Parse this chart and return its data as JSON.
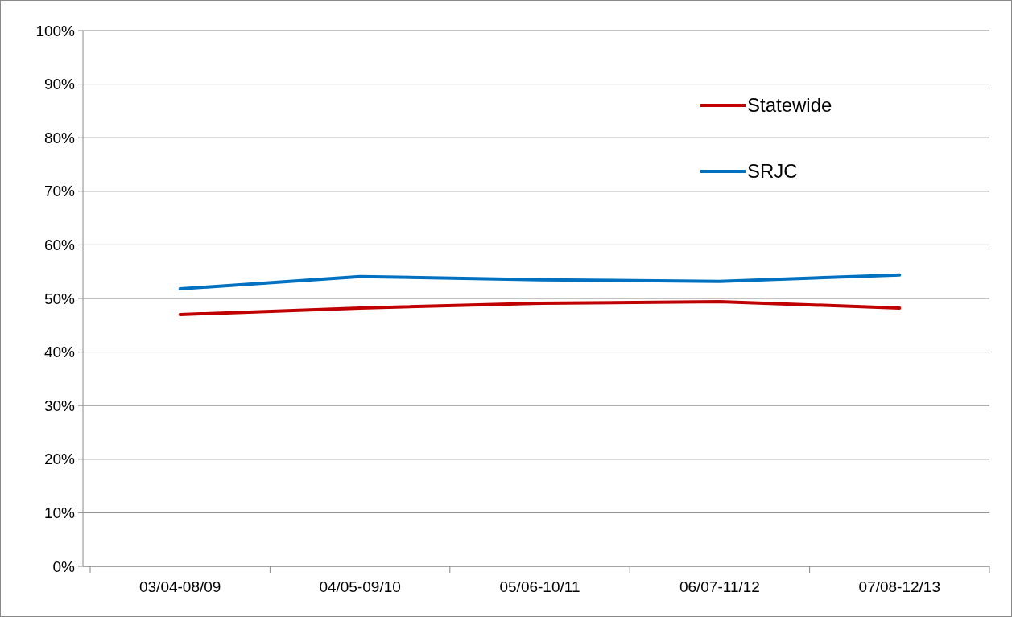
{
  "chart_data": {
    "type": "line",
    "categories": [
      "03/04-08/09",
      "04/05-09/10",
      "05/06-10/11",
      "06/07-11/12",
      "07/08-12/13"
    ],
    "series": [
      {
        "name": "Statewide",
        "color": "#c00000",
        "values": [
          47.0,
          48.2,
          49.1,
          49.4,
          48.2
        ]
      },
      {
        "name": "SRJC",
        "color": "#0070c0",
        "values": [
          51.8,
          54.1,
          53.5,
          53.2,
          54.4
        ]
      }
    ],
    "ylim": [
      0,
      100
    ],
    "yticks": [
      {
        "value": 0,
        "label": "0%"
      },
      {
        "value": 10,
        "label": "10%"
      },
      {
        "value": 20,
        "label": "20%"
      },
      {
        "value": 30,
        "label": "30%"
      },
      {
        "value": 40,
        "label": "40%"
      },
      {
        "value": 50,
        "label": "50%"
      },
      {
        "value": 60,
        "label": "60%"
      },
      {
        "value": 70,
        "label": "70%"
      },
      {
        "value": 80,
        "label": "80%"
      },
      {
        "value": 90,
        "label": "90%"
      },
      {
        "value": 100,
        "label": "100%"
      }
    ],
    "grid": "y",
    "legend": "top right",
    "marker": "none",
    "line_style": "solid"
  }
}
